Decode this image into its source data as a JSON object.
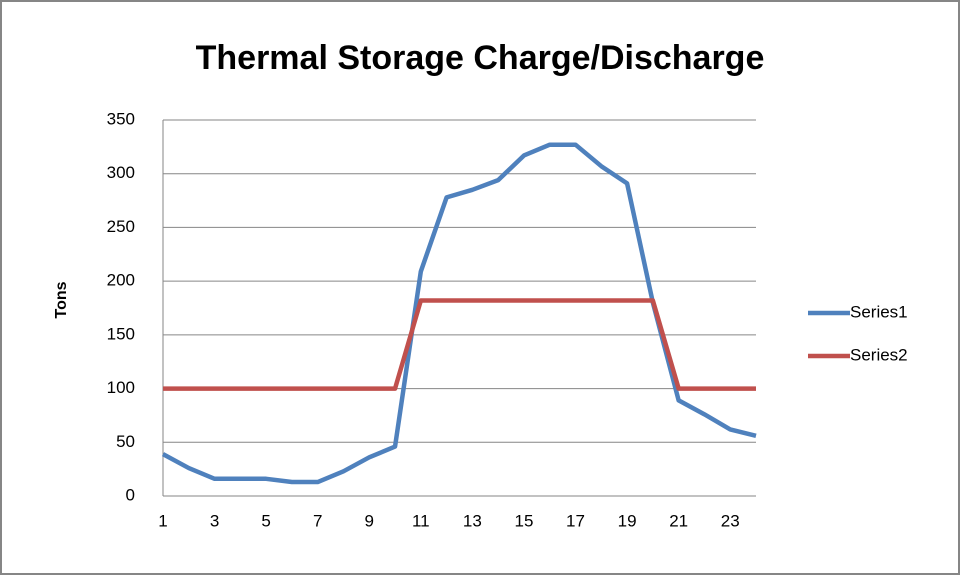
{
  "chart_data": {
    "type": "line",
    "title": "Thermal Storage Charge/Discharge",
    "y_label": "Tons",
    "categories": [
      1,
      null,
      3,
      null,
      5,
      null,
      7,
      null,
      9,
      null,
      11,
      null,
      13,
      null,
      15,
      null,
      17,
      null,
      19,
      null,
      21,
      null,
      23,
      null
    ],
    "series": [
      {
        "name": "Series1",
        "color": "#4f81bd",
        "values": [
          39,
          26,
          16,
          16,
          16,
          13,
          13,
          23,
          36,
          46,
          209,
          278,
          285,
          294,
          317,
          327,
          327,
          307,
          291,
          180,
          89,
          76,
          62,
          56
        ]
      },
      {
        "name": "Series2",
        "color": "#c0504d",
        "values": [
          100,
          100,
          100,
          100,
          100,
          100,
          100,
          100,
          100,
          100,
          182,
          182,
          182,
          182,
          182,
          182,
          182,
          182,
          182,
          182,
          100,
          100,
          100,
          100
        ]
      }
    ],
    "ylim": [
      0,
      350
    ],
    "yticks": [
      0,
      50,
      100,
      150,
      200,
      250,
      300,
      350
    ],
    "grid": true,
    "legend": "right"
  }
}
